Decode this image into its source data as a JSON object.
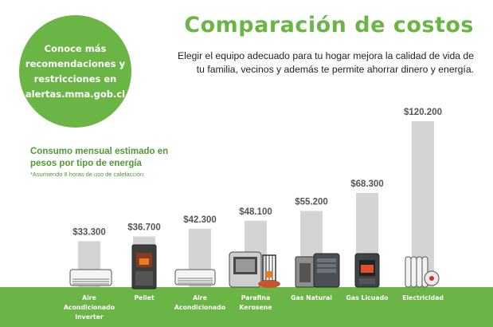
{
  "circle": {
    "lines": [
      "Conoce más",
      "recomendaciones y",
      "restricciones en",
      "alertas.mma.gob.cl"
    ]
  },
  "header": {
    "title": "Comparación de costos",
    "subtitle": "Elegir el equipo adecuado para tu hogar  mejora la calidad de vida de tu familia, vecinos y además te permite ahorrar dinero y energía."
  },
  "chart_data": {
    "type": "bar",
    "title": "Consumo mensual estimado en pesos por tipo de energía",
    "note": "*Asumiendo 8 horas de uso de calefacción",
    "categories": [
      [
        "Aire",
        "Acondicionado",
        "Inverter"
      ],
      [
        "Pellet"
      ],
      [
        "Aire",
        "Acondicionado"
      ],
      [
        "Parafina",
        "Kerosene"
      ],
      [
        "Gas Natural"
      ],
      [
        "Gas Licuado"
      ],
      [
        "Electricidad"
      ]
    ],
    "values": [
      33300,
      36700,
      42300,
      48100,
      55200,
      68300,
      120200
    ],
    "value_labels": [
      "$33.300",
      "$36.700",
      "$42.300",
      "$48.100",
      "$55.200",
      "$68.300",
      "$120.200"
    ],
    "grid": false,
    "legend": "none"
  },
  "colors": {
    "brand_green": "#6ab546",
    "bar_gray": "#d4d4d4",
    "ground_green": "#6ab546"
  },
  "icons": [
    "air-conditioner-icon",
    "pellet-stove-icon",
    "air-conditioner-icon",
    "kerosene-heater-icon",
    "gas-heater-icon",
    "gas-cylinder-heater-icon",
    "oil-radiator-icon"
  ]
}
